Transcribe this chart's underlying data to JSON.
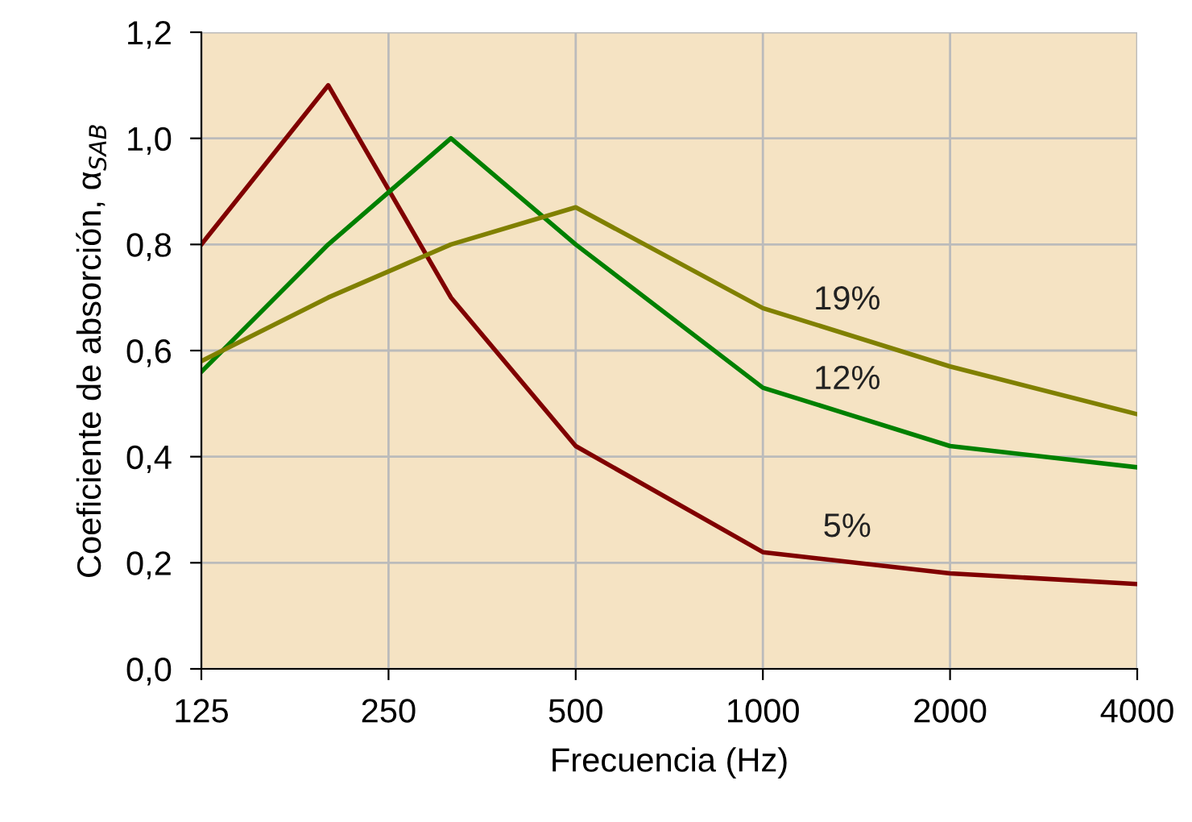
{
  "chart_data": {
    "type": "line",
    "xlabel": "Frecuencia (Hz)",
    "ylabel": "Coeficiente de absorción, α$_{SAB}$",
    "log": "x",
    "xlim": [
      125,
      4000
    ],
    "xticks": [
      125,
      250,
      500,
      1000,
      2000,
      4000
    ],
    "ylim": [
      0,
      1.2
    ],
    "yticks": [
      {
        "value": 0,
        "label": "0,0"
      },
      {
        "value": 0.2,
        "label": "0,2"
      },
      {
        "value": 0.4,
        "label": "0,4"
      },
      {
        "value": 0.6,
        "label": "0,6"
      },
      {
        "value": 0.8,
        "label": "0,8"
      },
      {
        "value": 1.0,
        "label": "1,0"
      },
      {
        "value": 1.2,
        "label": "1,2"
      }
    ],
    "grid": true,
    "marker": "none",
    "line_style": "solid",
    "x": [
      125,
      200,
      315,
      500,
      1000,
      2000,
      4000
    ],
    "series": [
      {
        "name": "5%",
        "color": "#800000",
        "values": [
          0.8,
          1.1,
          0.7,
          0.42,
          0.22,
          0.18,
          0.16
        ]
      },
      {
        "name": "12%",
        "color": "#008000",
        "values": [
          0.56,
          0.8,
          1.0,
          0.8,
          0.53,
          0.42,
          0.38
        ]
      },
      {
        "name": "19%",
        "color": "#808000",
        "values": [
          0.58,
          0.7,
          0.8,
          0.87,
          0.68,
          0.57,
          0.48
        ]
      }
    ]
  }
}
